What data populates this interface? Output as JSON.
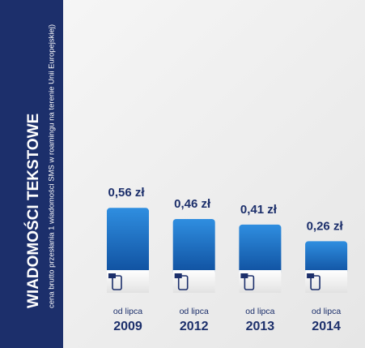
{
  "chart_data": {
    "type": "bar",
    "title": "WIADOMOŚCI TEKSTOWE",
    "subtitle": "cena brutto przesłania 1 wiadomości SMS w roamingu na terenie Unii Europejskiej)",
    "categories": [
      "2009",
      "2012",
      "2013",
      "2014"
    ],
    "category_prefixes": [
      "od lipca",
      "od lipca",
      "od lipca",
      "od lipca"
    ],
    "values": [
      0.56,
      0.46,
      0.41,
      0.26
    ],
    "value_labels": [
      "0,56 zł",
      "0,46 zł",
      "0,41 zł",
      "0,26 zł"
    ],
    "color": "#1a73c7"
  }
}
